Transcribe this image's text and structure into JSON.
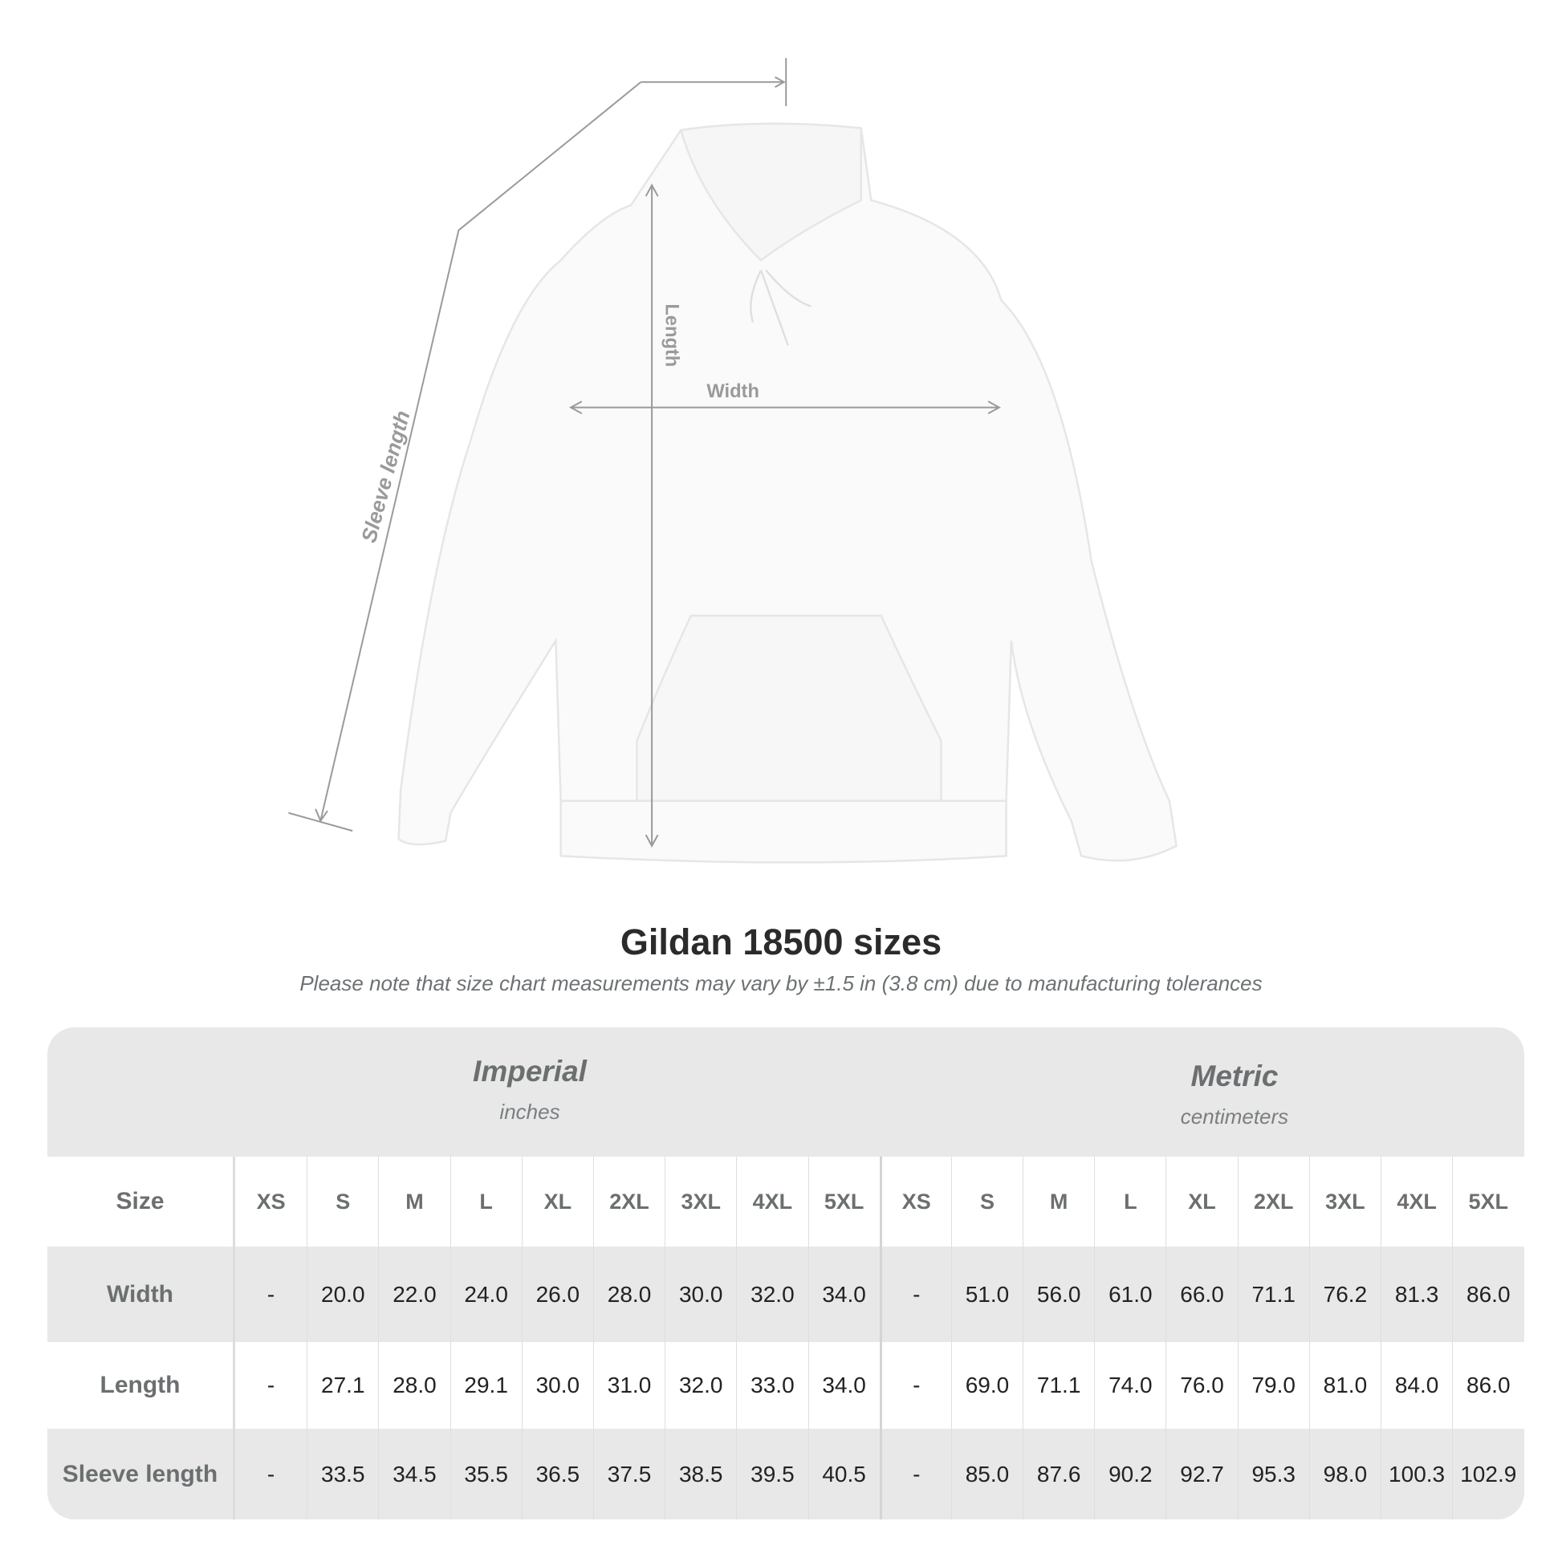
{
  "diagram": {
    "labels": {
      "sleeve": "Sleeve length",
      "length": "Length",
      "width": "Width"
    },
    "garment_color": "#fafafa"
  },
  "title": "Gildan 18500 sizes",
  "subtitle": "Please note that size chart measurements may vary by ±1.5 in (3.8 cm) due to manufacturing tolerances",
  "table": {
    "imperial": {
      "name": "Imperial",
      "unit": "inches"
    },
    "metric": {
      "name": "Metric",
      "unit": "centimeters"
    },
    "size_label": "Size",
    "sizes": [
      "XS",
      "S",
      "M",
      "L",
      "XL",
      "2XL",
      "3XL",
      "4XL",
      "5XL"
    ],
    "rows": [
      {
        "label": "Width",
        "imperial": [
          "-",
          "20.0",
          "22.0",
          "24.0",
          "26.0",
          "28.0",
          "30.0",
          "32.0",
          "34.0"
        ],
        "metric": [
          "-",
          "51.0",
          "56.0",
          "61.0",
          "66.0",
          "71.1",
          "76.2",
          "81.3",
          "86.0"
        ]
      },
      {
        "label": "Length",
        "imperial": [
          "-",
          "27.1",
          "28.0",
          "29.1",
          "30.0",
          "31.0",
          "32.0",
          "33.0",
          "34.0"
        ],
        "metric": [
          "-",
          "69.0",
          "71.1",
          "74.0",
          "76.0",
          "79.0",
          "81.0",
          "84.0",
          "86.0"
        ]
      },
      {
        "label": "Sleeve length",
        "imperial": [
          "-",
          "33.5",
          "34.5",
          "35.5",
          "36.5",
          "37.5",
          "38.5",
          "39.5",
          "40.5"
        ],
        "metric": [
          "-",
          "85.0",
          "87.6",
          "90.2",
          "92.7",
          "95.3",
          "98.0",
          "100.3",
          "102.9"
        ]
      }
    ]
  }
}
